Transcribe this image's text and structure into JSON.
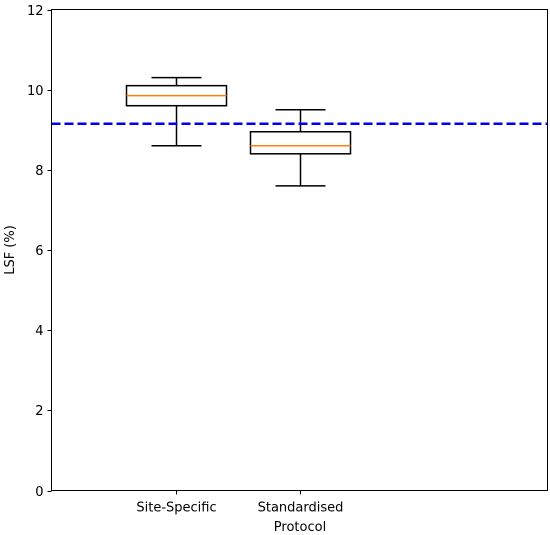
{
  "chart_data": {
    "type": "box",
    "title": "",
    "xlabel": "Protocol",
    "ylabel": "LSF (%)",
    "categories": [
      "Site-Specific",
      "Standardised"
    ],
    "ylim": [
      0,
      12
    ],
    "yticks": [
      0,
      2,
      4,
      6,
      8,
      10,
      12
    ],
    "boxes": [
      {
        "category": "Site-Specific",
        "whisker_low": 8.6,
        "q1": 9.6,
        "median": 9.85,
        "q3": 10.1,
        "whisker_high": 10.3
      },
      {
        "category": "Standardised",
        "whisker_low": 7.6,
        "q1": 8.4,
        "median": 8.6,
        "q3": 8.95,
        "whisker_high": 9.5
      }
    ],
    "reference_line": {
      "y": 9.15,
      "style": "dashed",
      "color": "#0000ee"
    },
    "colors": {
      "box": "#000000",
      "median": "#ff7f0e",
      "reference": "#0000ee"
    },
    "grid": false,
    "legend": "none"
  }
}
